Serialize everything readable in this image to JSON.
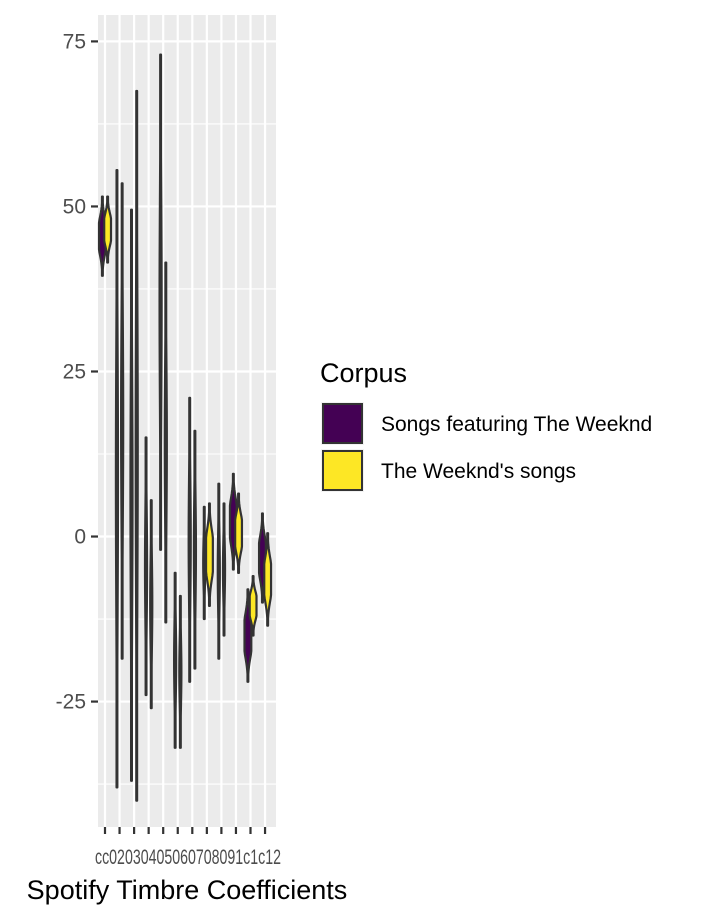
{
  "chart_data": {
    "type": "violin",
    "xlabel": "Spotify Timbre Coefficients",
    "ylabel": "",
    "ylim": [
      -44,
      79
    ],
    "y_ticks": [
      -25,
      0,
      25,
      50,
      75
    ],
    "y_tick_labels": [
      "-25",
      "0",
      "25",
      "50",
      "75"
    ],
    "categories": [
      "c01",
      "c02",
      "c03",
      "c04",
      "c05",
      "c06",
      "c07",
      "c08",
      "c09",
      "c10",
      "c11",
      "c12"
    ],
    "x_tick_text": "c0c02c03c04c05c06c07c08c09c10c11c12",
    "x_tick_text_visible": "cc02030405060708091c1c12",
    "grid": true,
    "legend": {
      "title": "Corpus",
      "position": "right",
      "entries": [
        {
          "name": "Songs featuring The Weeknd",
          "color": "#440154"
        },
        {
          "name": "The Weeknd's songs",
          "color": "#fde725"
        }
      ]
    },
    "series": [
      {
        "name": "Songs featuring The Weeknd",
        "color": "#440154",
        "ranges": [
          [
            39.5,
            51.5
          ],
          [
            -38,
            55.5
          ],
          [
            -37,
            49.5
          ],
          [
            -24,
            15
          ],
          [
            -2,
            73
          ],
          [
            -32,
            -5.5
          ],
          [
            -22,
            21
          ],
          [
            -12.5,
            4.5
          ],
          [
            -18.5,
            8
          ],
          [
            -5,
            9.5
          ],
          [
            -22,
            -8
          ],
          [
            -10,
            3.5
          ]
        ]
      },
      {
        "name": "The Weeknd's songs",
        "color": "#fde725",
        "ranges": [
          [
            41.5,
            51.5
          ],
          [
            -18.5,
            53.5
          ],
          [
            -40,
            67.5
          ],
          [
            -26,
            5.5
          ],
          [
            -13,
            41.5
          ],
          [
            -32,
            -9
          ],
          [
            -20,
            16
          ],
          [
            -10.5,
            5
          ],
          [
            -15,
            5
          ],
          [
            -5.5,
            6.5
          ],
          [
            -15,
            -6
          ],
          [
            -13.5,
            0.5
          ]
        ]
      }
    ]
  }
}
